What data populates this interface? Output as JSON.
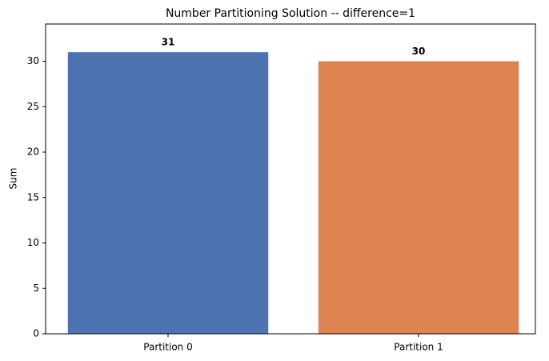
{
  "chart_data": {
    "type": "bar",
    "title": "Number Partitioning Solution -- difference=1",
    "y_label": "Sum",
    "categories": [
      "Partition 0",
      "Partition 1"
    ],
    "values": [
      31,
      30
    ],
    "colors": [
      "#4c72b0",
      "#dd8452"
    ],
    "ylim": [
      0,
      34.1
    ],
    "yticks": [
      0,
      5,
      10,
      15,
      20,
      25,
      30
    ],
    "grid": false
  }
}
